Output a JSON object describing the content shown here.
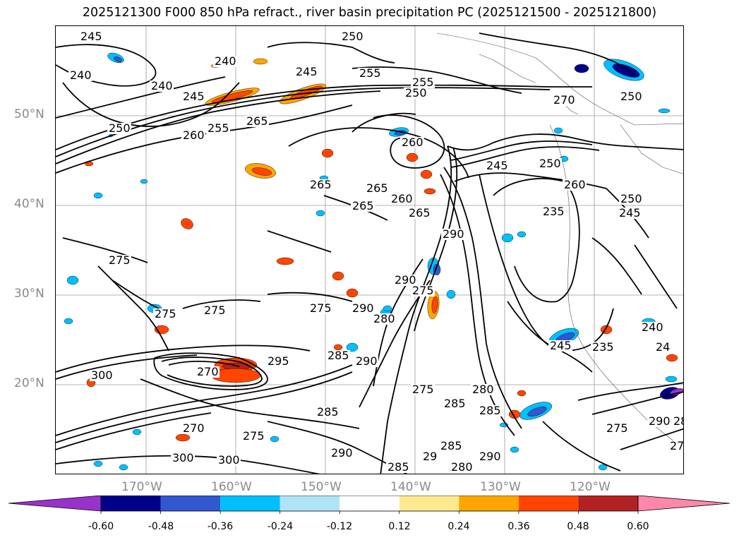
{
  "title": "2025121300 F000 850 hPa refract., river basin precipitation PC (2025121500 - 2025121800)",
  "map": {
    "lat_labels": [
      "50°N",
      "40°N",
      "30°N",
      "20°N"
    ],
    "lon_labels": [
      "170°W",
      "160°W",
      "150°W",
      "140°W",
      "130°W",
      "120°W"
    ],
    "contour_labels": [
      "245",
      "240",
      "240",
      "240",
      "245",
      "245",
      "255",
      "250",
      "260",
      "265",
      "265",
      "250",
      "255",
      "250",
      "255",
      "260",
      "265",
      "270",
      "275",
      "275",
      "275",
      "260",
      "250",
      "245",
      "235",
      "250",
      "245",
      "275",
      "270",
      "285",
      "290",
      "275",
      "280",
      "290",
      "260",
      "245",
      "235",
      "240",
      "24",
      "280",
      "285",
      "290",
      "300",
      "300",
      "300",
      "270",
      "275",
      "285",
      "295",
      "290",
      "285",
      "280",
      "29",
      "285",
      "275",
      "290",
      "270",
      "285",
      "280",
      "275",
      "290",
      "250",
      "265",
      "265",
      "290"
    ],
    "grid_color": "#9a9a9a",
    "contour_color": "#000000"
  },
  "colorbar": {
    "ticks": [
      "-0.60",
      "-0.48",
      "-0.36",
      "-0.24",
      "-0.12",
      "0.12",
      "0.24",
      "0.36",
      "0.48",
      "0.60"
    ],
    "bins": [
      {
        "color": "#9932cc"
      },
      {
        "color": "#00008b"
      },
      {
        "color": "#3158cf"
      },
      {
        "color": "#00bfff"
      },
      {
        "color": "#afe4f7"
      },
      {
        "color": "#ffffff"
      },
      {
        "color": "#ffe98f"
      },
      {
        "color": "#ffa500"
      },
      {
        "color": "#ff4500"
      },
      {
        "color": "#b22222"
      },
      {
        "color": "#ff88aa"
      }
    ]
  }
}
